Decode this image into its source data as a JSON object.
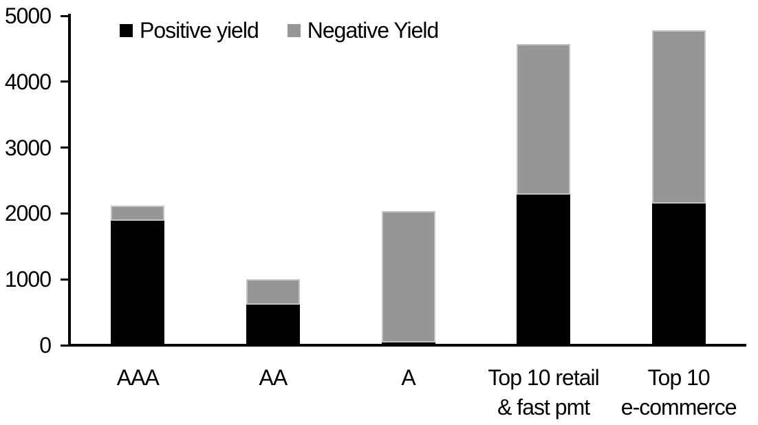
{
  "chart_data": {
    "type": "bar",
    "stacked": true,
    "title": "",
    "categories": [
      "AAA",
      "AA",
      "A",
      "Top 10 retail\n& fast pmt",
      "Top 10\ne-commerce"
    ],
    "series": [
      {
        "name": "Positive yield",
        "color": "#000000",
        "values": [
          1890,
          620,
          40,
          2290,
          2150
        ]
      },
      {
        "name": "Negative Yield",
        "color": "#969696",
        "values": [
          230,
          380,
          2000,
          2280,
          2630
        ]
      }
    ],
    "totals": [
      2120,
      1000,
      2040,
      4570,
      4780
    ],
    "ylabel": "",
    "xlabel": "",
    "ylim": [
      0,
      5000
    ],
    "ytick_interval": 1000,
    "yticks": [
      "0",
      "1000",
      "2000",
      "3000",
      "4000",
      "5000"
    ],
    "grid": false,
    "legend_position": "top-left-inside",
    "colors": {
      "background": "#ffffff",
      "axis": "#000000",
      "bar_border": "#c4c4c4"
    }
  }
}
